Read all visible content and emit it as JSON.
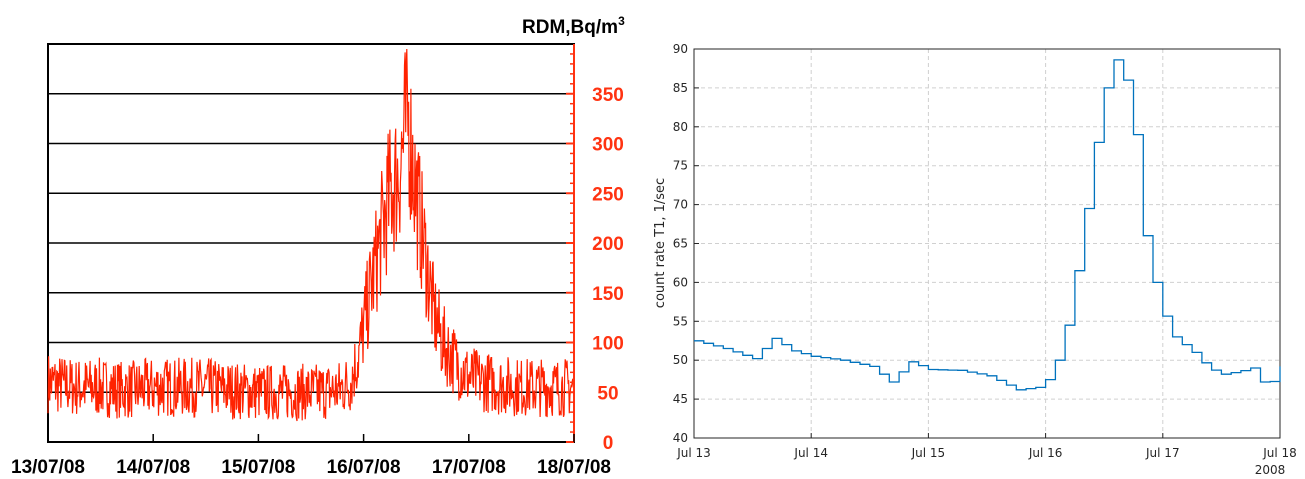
{
  "chart_data": [
    {
      "type": "line",
      "ylabel": "RDM,Bq/m",
      "ylabel_superscript": "3",
      "ylim": [
        0,
        400
      ],
      "yticks": [
        0,
        50,
        100,
        150,
        200,
        250,
        300,
        350
      ],
      "ytick_labels": [
        "0",
        "50",
        "100",
        "150",
        "200",
        "250",
        "300",
        "350"
      ],
      "xlim": [
        "2008-07-13",
        "2008-07-18"
      ],
      "xticks": [
        "2008-07-13",
        "2008-07-14",
        "2008-07-15",
        "2008-07-16",
        "2008-07-17",
        "2008-07-18"
      ],
      "xtick_labels": [
        "13/07/08",
        "14/07/08",
        "15/07/08",
        "16/07/08",
        "17/07/08",
        "18/07/08"
      ],
      "grid": "horizontal",
      "colors": {
        "series": "#ff2200",
        "axis": "#ff3311",
        "grid": "#000000",
        "text": "#000000"
      },
      "series": [
        {
          "x": [
            "2008-07-13 00:00",
            "2008-07-13 06:00",
            "2008-07-13 12:00",
            "2008-07-13 18:00",
            "2008-07-14 00:00",
            "2008-07-14 06:00",
            "2008-07-14 12:00",
            "2008-07-14 18:00",
            "2008-07-15 00:00",
            "2008-07-15 06:00",
            "2008-07-15 12:00",
            "2008-07-15 18:00",
            "2008-07-15 21:00",
            "2008-07-15 23:00",
            "2008-07-16 01:00",
            "2008-07-16 03:00",
            "2008-07-16 05:00",
            "2008-07-16 06:00",
            "2008-07-16 08:00",
            "2008-07-16 10:00",
            "2008-07-16 12:00",
            "2008-07-16 14:00",
            "2008-07-16 16:00",
            "2008-07-16 18:00",
            "2008-07-16 21:00",
            "2008-07-17 00:00",
            "2008-07-17 06:00",
            "2008-07-17 12:00",
            "2008-07-17 18:00",
            "2008-07-18 00:00"
          ],
          "values": [
            60,
            55,
            55,
            52,
            55,
            55,
            55,
            52,
            50,
            50,
            50,
            52,
            60,
            90,
            140,
            185,
            230,
            250,
            270,
            330,
            250,
            190,
            130,
            100,
            80,
            65,
            58,
            55,
            55,
            55
          ]
        }
      ]
    },
    {
      "type": "line",
      "ylabel": "count rate T1, 1/sec",
      "ylim": [
        40,
        90
      ],
      "yticks": [
        40,
        45,
        50,
        55,
        60,
        65,
        70,
        75,
        80,
        85,
        90
      ],
      "ytick_labels": [
        "40",
        "45",
        "50",
        "55",
        "60",
        "65",
        "70",
        "75",
        "80",
        "85",
        "90"
      ],
      "xlim": [
        "2008-07-13",
        "2008-07-18"
      ],
      "xticks": [
        "2008-07-13",
        "2008-07-14",
        "2008-07-15",
        "2008-07-16",
        "2008-07-17",
        "2008-07-18"
      ],
      "xtick_labels": [
        "Jul 13",
        "Jul 14",
        "Jul 15",
        "Jul 16",
        "Jul 17",
        "Jul 18"
      ],
      "year_label": "2008",
      "grid": "dashed",
      "colors": {
        "series": "#0072bd",
        "axis": "#262626",
        "grid": "#d0d0d0",
        "text": "#262626"
      },
      "series": [
        {
          "x": [
            "2008-07-13 00:00",
            "2008-07-13 06:00",
            "2008-07-13 12:00",
            "2008-07-13 16:00",
            "2008-07-13 20:00",
            "2008-07-14 00:00",
            "2008-07-14 06:00",
            "2008-07-14 12:00",
            "2008-07-14 16:00",
            "2008-07-14 20:00",
            "2008-07-15 00:00",
            "2008-07-15 06:00",
            "2008-07-15 12:00",
            "2008-07-15 18:00",
            "2008-07-15 22:00",
            "2008-07-16 01:00",
            "2008-07-16 03:00",
            "2008-07-16 05:00",
            "2008-07-16 06:00",
            "2008-07-16 07:00",
            "2008-07-16 08:00",
            "2008-07-16 09:00",
            "2008-07-16 10:00",
            "2008-07-16 11:00",
            "2008-07-16 12:00",
            "2008-07-16 14:00",
            "2008-07-16 16:00",
            "2008-07-16 18:00",
            "2008-07-16 20:00",
            "2008-07-16 23:00",
            "2008-07-17 02:00",
            "2008-07-17 06:00",
            "2008-07-17 09:00",
            "2008-07-17 12:00",
            "2008-07-17 15:00",
            "2008-07-17 18:00",
            "2008-07-17 21:00",
            "2008-07-18 00:00"
          ],
          "values": [
            52.5,
            51.5,
            50.2,
            52.8,
            51.2,
            50.5,
            50,
            49.2,
            47.2,
            49.8,
            48.8,
            48.7,
            48,
            46.2,
            46.5,
            48,
            52,
            57,
            61.5,
            66,
            69.5,
            73.5,
            78,
            82,
            85,
            88.6,
            86,
            79,
            66,
            57,
            53,
            51,
            49,
            48.2,
            48.5,
            49,
            46.3,
            49.2
          ]
        }
      ]
    }
  ]
}
